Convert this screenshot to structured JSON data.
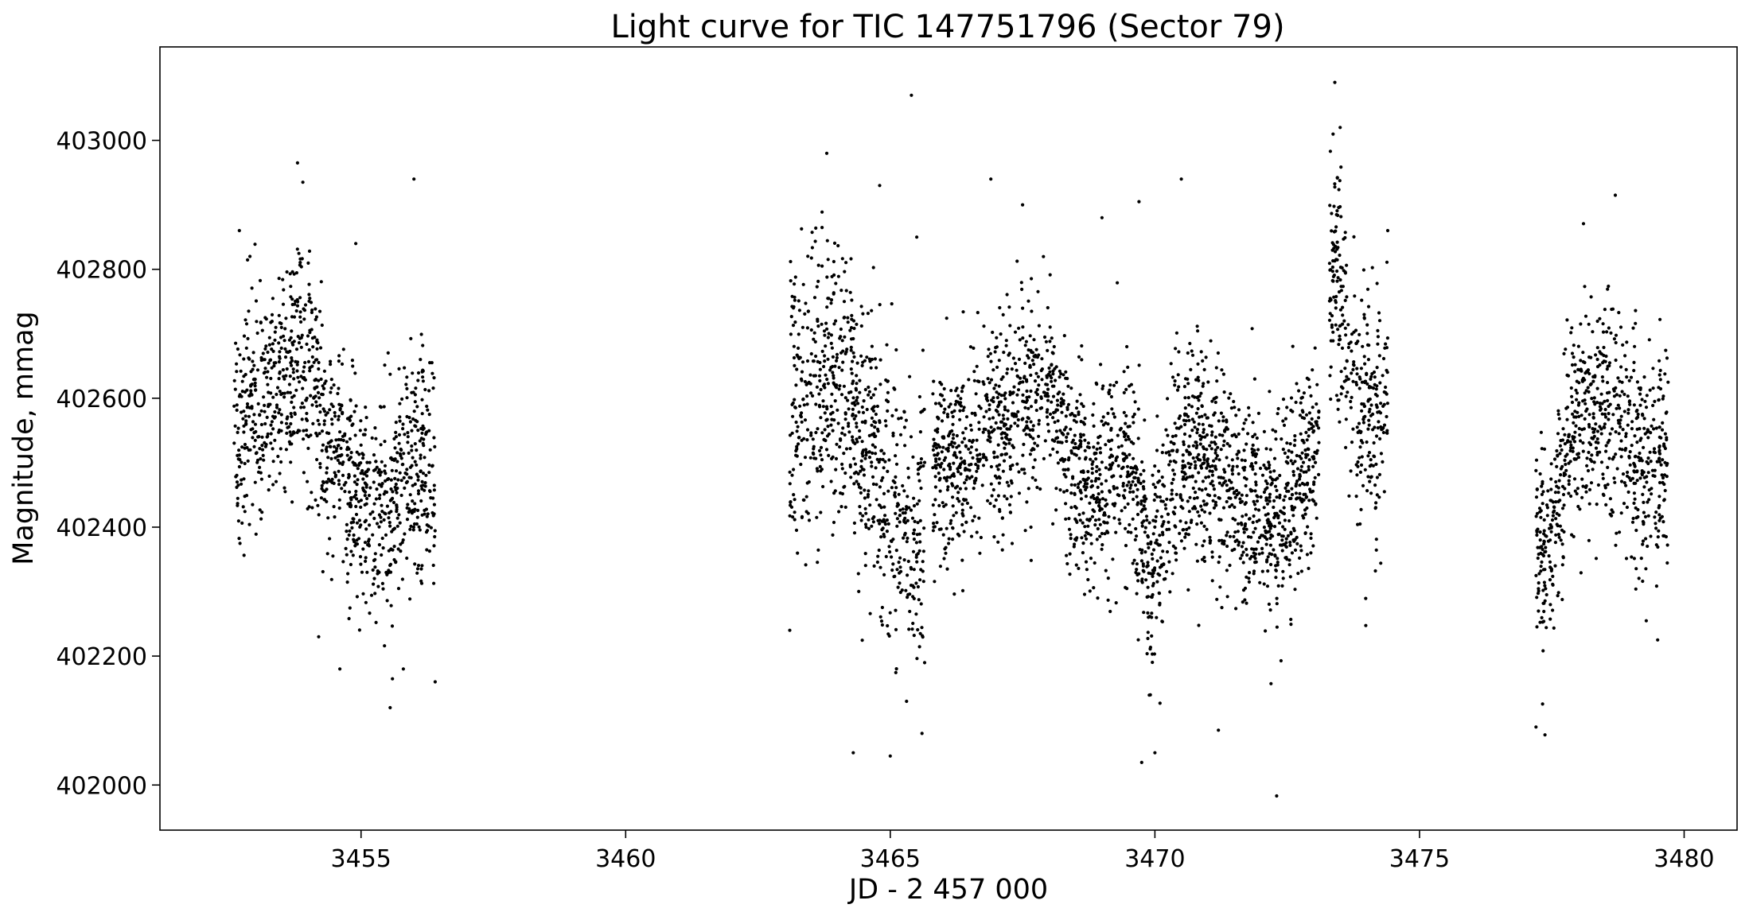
{
  "chart_data": {
    "type": "scatter",
    "title": "Light curve for TIC 147751796 (Sector 79)",
    "xlabel": "JD - 2 457 000",
    "ylabel": "Magnitude, mmag",
    "xlim": [
      3451.2,
      3481.0
    ],
    "ylim": [
      401930,
      403145
    ],
    "xticks": [
      3455,
      3460,
      3465,
      3470,
      3475,
      3480
    ],
    "yticks": [
      402000,
      402200,
      402400,
      402600,
      402800,
      403000
    ],
    "grid": false,
    "legend": "none",
    "marker_color": "#000000",
    "series": [
      {
        "segments": [
          {
            "x": [
              3452.6,
              3452.8,
              3453.0,
              3453.2,
              3453.4,
              3453.6,
              3453.8,
              3454.0,
              3454.2,
              3454.4,
              3454.6,
              3454.8,
              3455.0,
              3455.2,
              3455.4,
              3455.6,
              3455.8,
              3456.0,
              3456.2,
              3456.4
            ],
            "y": [
              402530,
              402570,
              402590,
              402600,
              402610,
              402640,
              402680,
              402640,
              402580,
              402540,
              402500,
              402460,
              402450,
              402440,
              402430,
              402430,
              402460,
              402490,
              402520,
              402420
            ],
            "spread": 85
          },
          {
            "x": [
              3463.1,
              3463.4,
              3463.7,
              3464.0,
              3464.3,
              3464.6,
              3464.9,
              3465.2,
              3465.4,
              3465.65
            ],
            "y": [
              402560,
              402600,
              402630,
              402640,
              402600,
              402520,
              402460,
              402420,
              402390,
              402400
            ],
            "spread": 110
          },
          {
            "x": [
              3465.8,
              3466.1,
              3466.4,
              3466.7,
              3467.0,
              3467.3,
              3467.6,
              3467.9,
              3468.2,
              3468.5,
              3468.8,
              3469.1,
              3469.4,
              3469.7,
              3469.9,
              3470.1,
              3470.4,
              3470.7,
              3471.0,
              3471.3,
              3471.6,
              3471.9,
              3472.2,
              3472.5,
              3472.8,
              3473.1
            ],
            "y": [
              402510,
              402480,
              402500,
              402540,
              402550,
              402580,
              402620,
              402640,
              402560,
              402480,
              402460,
              402480,
              402500,
              402450,
              402330,
              402400,
              402500,
              402520,
              402500,
              402470,
              402450,
              402440,
              402420,
              402440,
              402480,
              402510
            ],
            "spread": 80
          },
          {
            "x": [
              3473.3,
              3473.45,
              3473.6,
              3473.8,
              3474.0,
              3474.2,
              3474.4
            ],
            "y": [
              402760,
              402850,
              402700,
              402600,
              402580,
              402550,
              402570
            ],
            "spread": 95
          },
          {
            "x": [
              3477.2,
              3477.4,
              3477.6,
              3477.8,
              3478.0,
              3478.3,
              3478.6,
              3478.9,
              3479.2,
              3479.5,
              3479.7
            ],
            "y": [
              402380,
              402330,
              402450,
              402530,
              402570,
              402580,
              402590,
              402540,
              402500,
              402490,
              402520
            ],
            "spread": 85
          }
        ],
        "outliers": {
          "x": [
            3452.7,
            3452.9,
            3453.8,
            3453.9,
            3454.2,
            3454.6,
            3454.9,
            3455.55,
            3455.8,
            3456.0,
            3456.4,
            3463.1,
            3463.8,
            3464.3,
            3464.8,
            3465.0,
            3465.4,
            3465.5,
            3465.6,
            3466.9,
            3467.5,
            3469.0,
            3469.7,
            3469.75,
            3470.0,
            3470.5,
            3471.2,
            3472.3,
            3473.4,
            3473.5,
            3474.4,
            3477.2,
            3478.7,
            3479.5
          ],
          "y": [
            402860,
            402820,
            402965,
            402935,
            402230,
            402180,
            402840,
            402120,
            402180,
            402940,
            402160,
            402240,
            402980,
            402050,
            402930,
            402045,
            403070,
            402850,
            402080,
            402940,
            402900,
            402880,
            402905,
            402035,
            402050,
            402940,
            402085,
            401983,
            403090,
            403020,
            402860,
            402090,
            402915,
            402225
          ]
        }
      }
    ]
  }
}
